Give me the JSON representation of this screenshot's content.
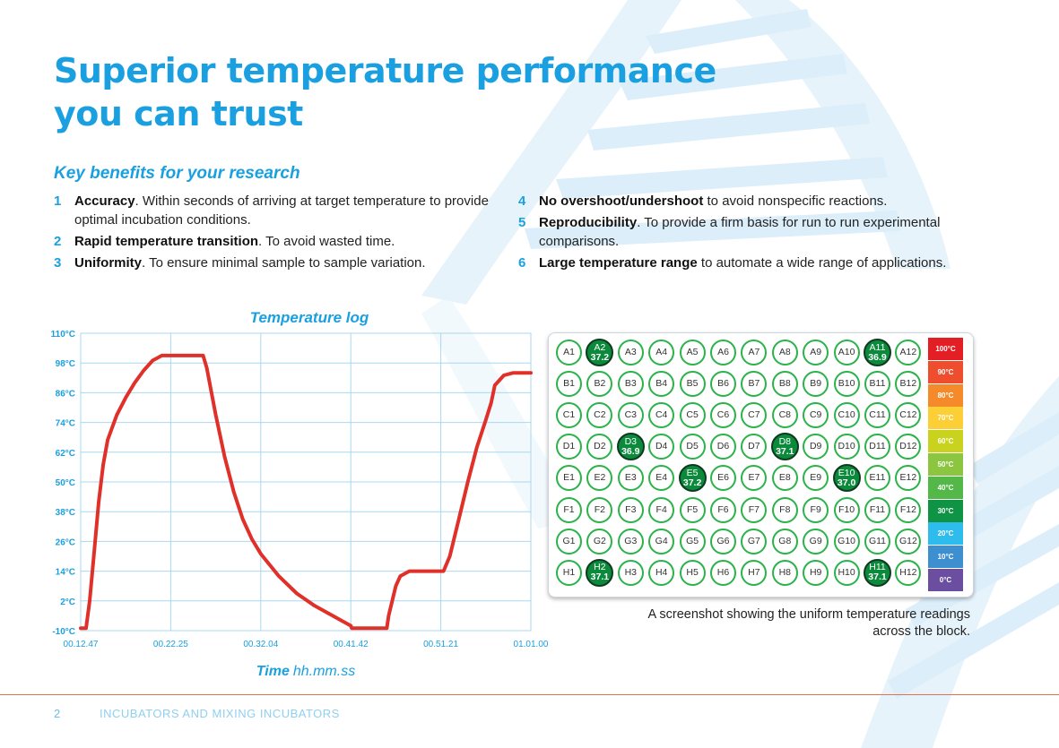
{
  "title": "Superior temperature performance you can trust",
  "subtitle": "Key benefits for your research",
  "benefits_left": [
    {
      "num": "1",
      "bold": "Accuracy",
      "text": ". Within seconds of arriving at target temperature to provide optimal incubation conditions."
    },
    {
      "num": "2",
      "bold": "Rapid temperature transition",
      "text": ". To avoid wasted time."
    },
    {
      "num": "3",
      "bold": "Uniformity",
      "text": ". To ensure minimal sample to sample variation."
    }
  ],
  "benefits_right": [
    {
      "num": "4",
      "bold": "No overshoot/undershoot",
      "text": " to avoid nonspecific reactions."
    },
    {
      "num": "5",
      "bold": "Reproducibility",
      "text": ". To provide a firm basis for run to run experimental comparisons."
    },
    {
      "num": "6",
      "bold": "Large temperature range",
      "text": " to automate a wide range of applications."
    }
  ],
  "chart_data": {
    "type": "line",
    "title": "Temperature log",
    "xlabel_bold": "Time",
    "xlabel_rest": "hh.mm.ss",
    "ylabel": "",
    "y_ticks": [
      "110°C",
      "98°C",
      "86°C",
      "74°C",
      "62°C",
      "50°C",
      "38°C",
      "26°C",
      "14°C",
      "2°C",
      "-10°C"
    ],
    "y_tick_values": [
      110,
      98,
      86,
      74,
      62,
      50,
      38,
      26,
      14,
      2,
      -10
    ],
    "x_ticks": [
      "00.12.47",
      "00.22.25",
      "00.32.04",
      "00.41.42",
      "00.51.21",
      "01.01.00"
    ],
    "ylim": [
      -10,
      110
    ],
    "xlim": [
      0,
      50
    ],
    "grid": true,
    "line_color": "#e0302a",
    "series": [
      {
        "x": [
          0,
          0.6,
          1,
          1.5,
          2,
          2.5,
          3,
          4,
          5,
          6,
          7,
          8,
          8.5,
          9,
          13.6,
          14,
          15,
          16,
          17,
          18,
          19,
          20,
          22,
          24,
          26,
          28,
          30,
          30.1,
          34,
          34.2,
          35,
          35.5,
          36,
          36.5,
          37,
          40,
          40.3,
          41,
          42,
          43,
          44,
          45,
          45.6,
          46,
          47,
          48,
          49,
          50
        ],
        "y": [
          -9,
          -9,
          2,
          22,
          42,
          57,
          67,
          77,
          84,
          90,
          95,
          99,
          100,
          101,
          101,
          96,
          77,
          60,
          46,
          35,
          27,
          21,
          12,
          5,
          0,
          -4,
          -8,
          -9,
          -9,
          -4,
          8,
          12,
          13,
          14,
          14,
          14,
          14,
          20,
          35,
          50,
          64,
          75,
          82,
          89,
          93,
          94,
          94,
          94
        ]
      }
    ]
  },
  "plate": {
    "rows": [
      [
        "A1",
        "A2",
        "A3",
        "A4",
        "A5",
        "A6",
        "A7",
        "A8",
        "A9",
        "A10",
        "A11",
        "A12"
      ],
      [
        "B1",
        "B2",
        "B3",
        "B4",
        "B5",
        "B6",
        "B7",
        "B8",
        "B9",
        "B10",
        "B11",
        "B12"
      ],
      [
        "C1",
        "C2",
        "C3",
        "C4",
        "C5",
        "C6",
        "C7",
        "C8",
        "C9",
        "C10",
        "C11",
        "C12"
      ],
      [
        "D1",
        "D2",
        "D3",
        "D4",
        "D5",
        "D6",
        "D7",
        "D8",
        "D9",
        "D10",
        "D11",
        "D12"
      ],
      [
        "E1",
        "E2",
        "E3",
        "E4",
        "E5",
        "E6",
        "E7",
        "E8",
        "E9",
        "E10",
        "E11",
        "E12"
      ],
      [
        "F1",
        "F2",
        "F3",
        "F4",
        "F5",
        "F6",
        "F7",
        "F8",
        "F9",
        "F10",
        "F11",
        "F12"
      ],
      [
        "G1",
        "G2",
        "G3",
        "G4",
        "G5",
        "G6",
        "G7",
        "G8",
        "G9",
        "G10",
        "G11",
        "G12"
      ],
      [
        "H1",
        "H2",
        "H3",
        "H4",
        "H5",
        "H6",
        "H7",
        "H8",
        "H9",
        "H10",
        "H11",
        "H12"
      ]
    ],
    "readings": {
      "A2": "37.2",
      "A11": "36.9",
      "D3": "36.9",
      "D8": "37.1",
      "E5": "37.2",
      "E10": "37.0",
      "H2": "37.1",
      "H11": "37.1"
    },
    "scale": [
      {
        "label": "100°C",
        "color": "#e31e24"
      },
      {
        "label": "90°C",
        "color": "#ee4d2e"
      },
      {
        "label": "80°C",
        "color": "#f58a2a"
      },
      {
        "label": "70°C",
        "color": "#fccf36"
      },
      {
        "label": "60°C",
        "color": "#c9d21d"
      },
      {
        "label": "50°C",
        "color": "#8cc540"
      },
      {
        "label": "40°C",
        "color": "#54b848"
      },
      {
        "label": "30°C",
        "color": "#0e9444"
      },
      {
        "label": "20°C",
        "color": "#2dbcec"
      },
      {
        "label": "10°C",
        "color": "#3e8fd0"
      },
      {
        "label": "0°C",
        "color": "#6b4ea0"
      }
    ]
  },
  "caption": "A screenshot showing the uniform temperature readings across the block.",
  "footer": {
    "page_number": "2",
    "title": "INCUBATORS AND MIXING INCUBATORS"
  },
  "colors": {
    "accent": "#1aa0e0",
    "well_border": "#2bb34a",
    "well_highlight": "#0b8a3c",
    "footer_rule": "#e07050"
  }
}
